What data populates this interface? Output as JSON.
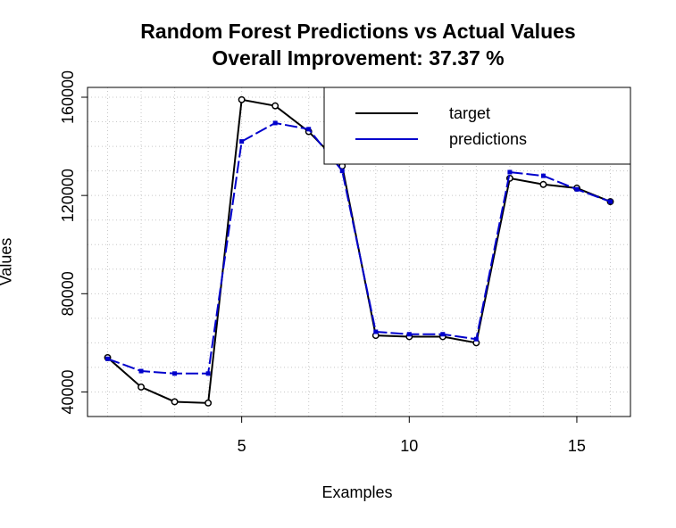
{
  "chart_data": {
    "type": "line",
    "title": "Random Forest Predictions vs Actual Values",
    "subtitle": "Overall Improvement: 37.37 %",
    "xlabel": "Examples",
    "ylabel": "Values",
    "x": [
      1,
      2,
      3,
      4,
      5,
      6,
      7,
      8,
      9,
      10,
      11,
      12,
      13,
      14,
      15,
      16
    ],
    "xlim": [
      0.4,
      16.6
    ],
    "ylim": [
      30000,
      164000
    ],
    "xticks": [
      5,
      10,
      15
    ],
    "yticks": [
      40000,
      80000,
      120000,
      160000
    ],
    "grid": true,
    "legend_position": "top-right",
    "series": [
      {
        "name": "target",
        "color": "#000000",
        "values": [
          54000,
          42000,
          36000,
          35500,
          159000,
          156500,
          146000,
          132000,
          63000,
          62500,
          62500,
          60000,
          127000,
          124500,
          123000,
          117500
        ]
      },
      {
        "name": "predictions",
        "color": "#0000cc",
        "values": [
          53500,
          48500,
          47500,
          47500,
          142000,
          149500,
          147000,
          130000,
          64500,
          63500,
          63500,
          61500,
          129500,
          128000,
          122500,
          117500
        ]
      }
    ]
  }
}
